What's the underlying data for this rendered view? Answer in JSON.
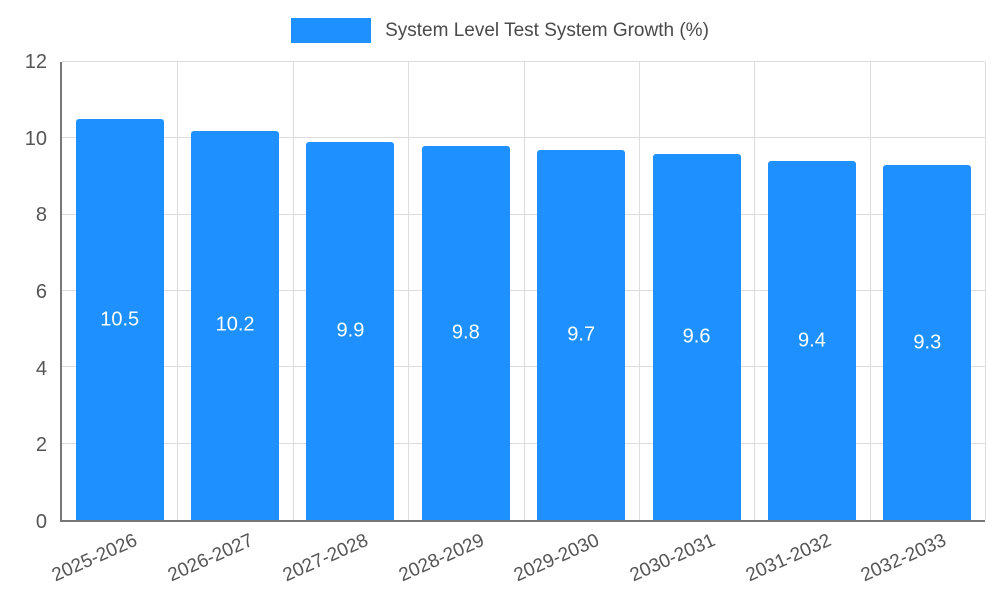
{
  "chart_data": {
    "type": "bar",
    "title": "System Level Test System Growth (%)",
    "categories": [
      "2025-2026",
      "2026-2027",
      "2027-2028",
      "2028-2029",
      "2029-2030",
      "2030-2031",
      "2031-2032",
      "2032-2033"
    ],
    "series": [
      {
        "name": "System Level Test System Growth (%)",
        "values": [
          10.5,
          10.2,
          9.9,
          9.8,
          9.7,
          9.6,
          9.4,
          9.3
        ]
      }
    ],
    "value_labels": [
      "10.5",
      "10.2",
      "9.9",
      "9.8",
      "9.7",
      "9.6",
      "9.4",
      "9.3"
    ],
    "xlabel": "",
    "ylabel": "",
    "ylim": [
      0,
      12
    ],
    "yticks": [
      0,
      2,
      4,
      6,
      8,
      10,
      12
    ],
    "grid": true,
    "legend_position": "top",
    "colors": {
      "bar": "#1e90ff",
      "bar_value_text": "#ffffff",
      "axis_text": "#555555",
      "gridline": "#dddddd",
      "axis_line": "#777777",
      "background": "#ffffff"
    }
  }
}
